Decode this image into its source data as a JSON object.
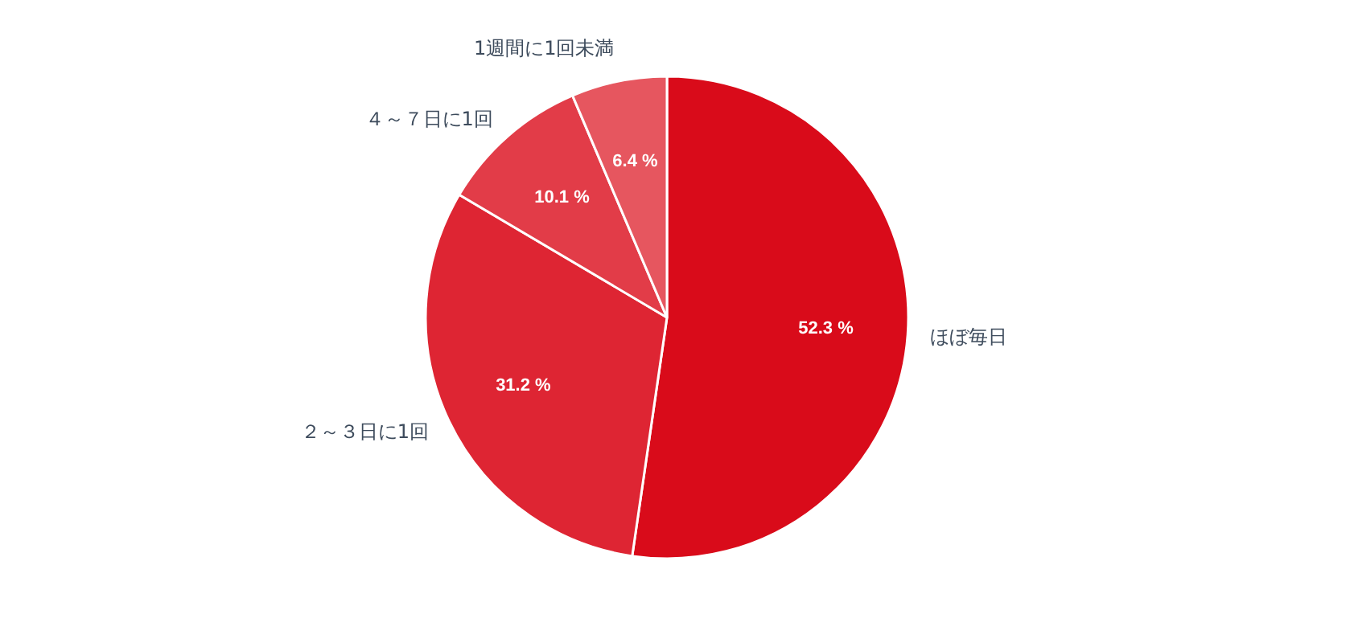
{
  "chart_data": {
    "type": "pie",
    "categories": [
      "ほぼ毎日",
      "２～３日に1回",
      "４～７日に1回",
      "1週間に1回未満"
    ],
    "values": [
      52.3,
      31.2,
      10.1,
      6.4
    ],
    "colors": [
      "#d90b1a",
      "#de2533",
      "#e23c48",
      "#e6565f"
    ],
    "value_labels": [
      "52.3 %",
      "31.2 %",
      "10.1 %",
      "6.4 %"
    ]
  }
}
